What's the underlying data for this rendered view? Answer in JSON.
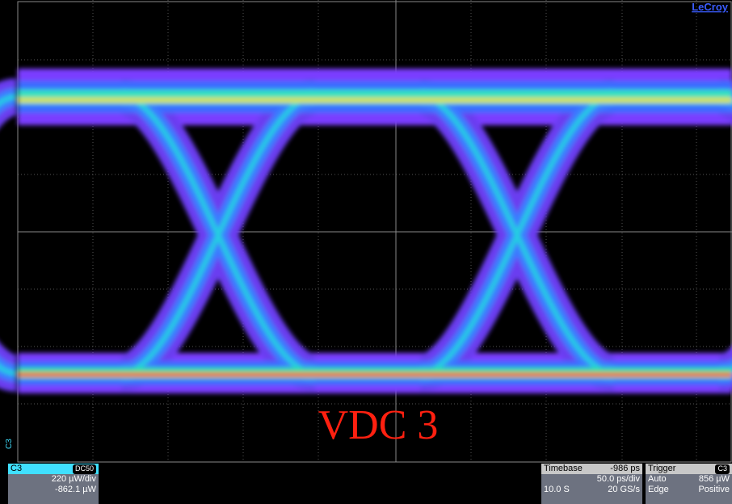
{
  "screen": {
    "brand": "LeCroy",
    "annotation": "VDC 3",
    "channel_marker": "C3"
  },
  "channel_panel": {
    "name": "C3",
    "coupling": "DC50",
    "scale": "220 µW/div",
    "offset": "-862.1 µW"
  },
  "timebase_panel": {
    "title": "Timebase",
    "delay": "-986 ps",
    "scale": "50.0 ps/div",
    "record": "10.0 S",
    "rate": "20 GS/s"
  },
  "trigger_panel": {
    "title": "Trigger",
    "source": "C3",
    "mode": "Auto",
    "level": "856 µW",
    "type": "Edge",
    "slope": "Positive"
  }
}
